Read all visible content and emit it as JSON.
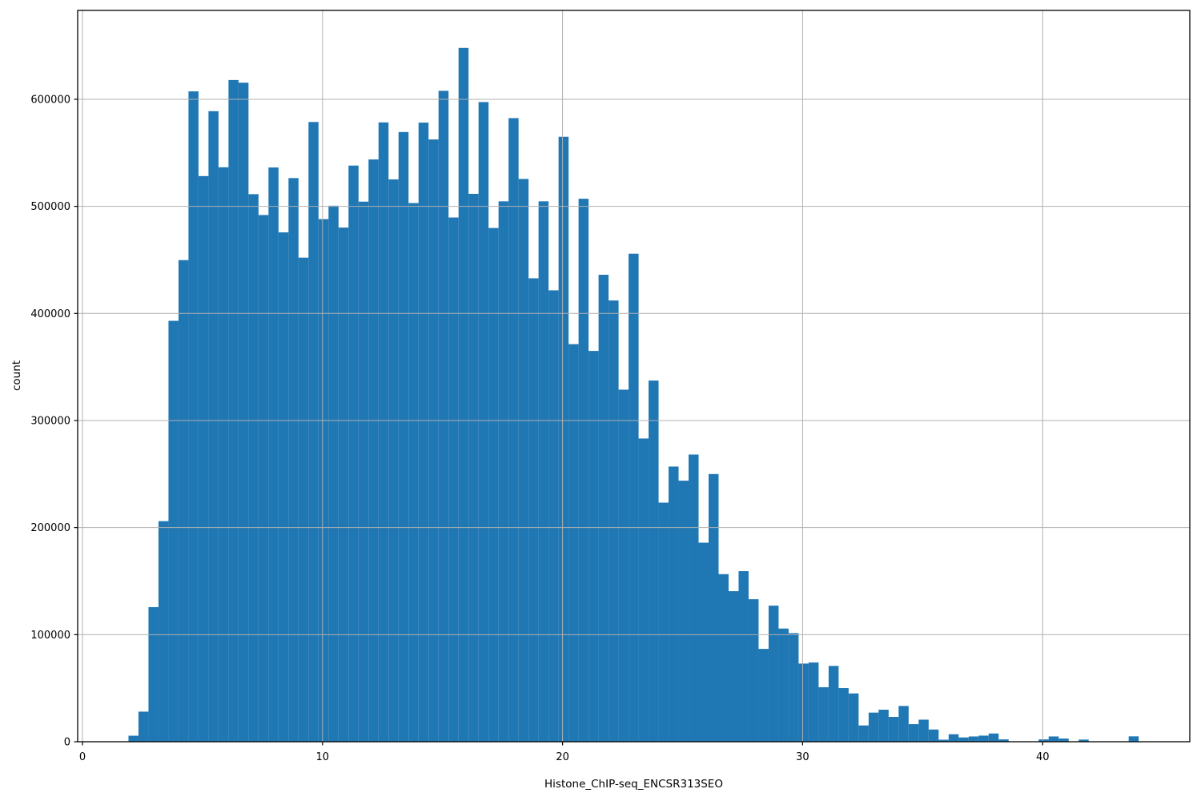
{
  "figure": {
    "background": "#ffffff",
    "plot_background": "#ffffff"
  },
  "chart_data": {
    "type": "bar",
    "subtype": "histogram",
    "title": "",
    "xlabel": "Histone_ChIP-seq_ENCSR313SEO",
    "ylabel": "count",
    "bar_color": "#1f77b4",
    "grid": true,
    "grid_color": "#b0b0b0",
    "spine_color": "#000000",
    "tick_color": "#000000",
    "xlim": [
      -0.2,
      46.13
    ],
    "ylim": [
      0,
      683000
    ],
    "x_ticks": [
      0,
      10,
      20,
      30,
      40
    ],
    "y_ticks": [
      0,
      100000,
      200000,
      300000,
      400000,
      500000,
      600000
    ],
    "legend": null,
    "bin_start": 1.917,
    "bin_width": 0.41667,
    "counts": [
      5600,
      28100,
      125700,
      206000,
      393100,
      449800,
      607400,
      528300,
      588900,
      536500,
      618000,
      615500,
      511400,
      491900,
      536300,
      475700,
      526400,
      452100,
      578800,
      488100,
      500600,
      480200,
      538100,
      504400,
      543800,
      578400,
      525200,
      569400,
      503100,
      578200,
      562500,
      607900,
      489600,
      648000,
      511700,
      597400,
      479800,
      504700,
      582400,
      525600,
      432800,
      504700,
      421600,
      565000,
      371300,
      507100,
      365000,
      436100,
      412100,
      328800,
      455800,
      283200,
      337300,
      223300,
      257000,
      243800,
      268200,
      185900,
      250000,
      156500,
      140600,
      159300,
      133100,
      86700,
      127100,
      105700,
      101400,
      73000,
      74000,
      50900,
      70800,
      50100,
      45100,
      15200,
      27200,
      29900,
      23200,
      33400,
      16400,
      20600,
      11400,
      1900,
      7000,
      4000,
      4900,
      5700,
      7700,
      2200,
      0,
      0,
      0,
      2200,
      4900,
      3000,
      0,
      2000,
      0,
      0,
      0,
      0,
      5000
    ]
  }
}
